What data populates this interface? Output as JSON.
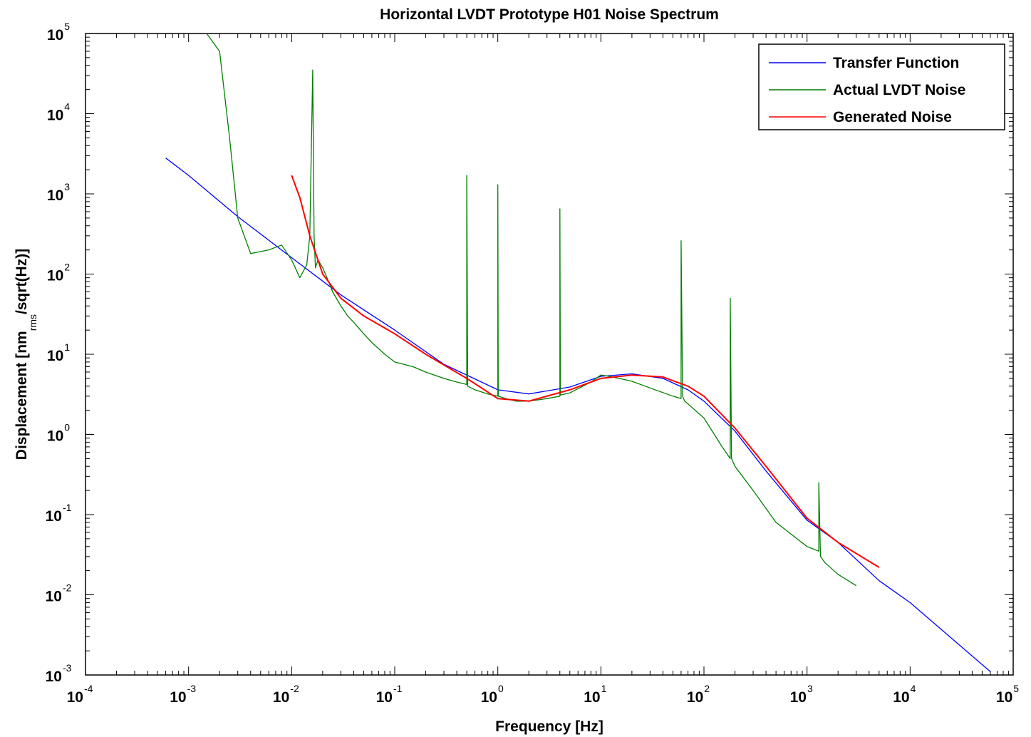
{
  "chart_data": {
    "type": "line",
    "title": "Horizontal LVDT Prototype H01 Noise Spectrum",
    "xlabel": "Frequency [Hz]",
    "ylabel_main": "Displacement [nm",
    "ylabel_sub": "rms",
    "ylabel_tail": "/sqrt(Hz)]",
    "xscale": "log",
    "yscale": "log",
    "xlim": [
      0.0001,
      100000
    ],
    "ylim": [
      0.001,
      100000
    ],
    "grid": false,
    "legend_position": "top-right",
    "x_ticks": [
      {
        "base": "10",
        "exp": "-4"
      },
      {
        "base": "10",
        "exp": "-3"
      },
      {
        "base": "10",
        "exp": "-2"
      },
      {
        "base": "10",
        "exp": "-1"
      },
      {
        "base": "10",
        "exp": "0"
      },
      {
        "base": "10",
        "exp": "1"
      },
      {
        "base": "10",
        "exp": "2"
      },
      {
        "base": "10",
        "exp": "3"
      },
      {
        "base": "10",
        "exp": "4"
      },
      {
        "base": "10",
        "exp": "5"
      }
    ],
    "y_ticks": [
      {
        "base": "10",
        "exp": "-3"
      },
      {
        "base": "10",
        "exp": "-2"
      },
      {
        "base": "10",
        "exp": "-1"
      },
      {
        "base": "10",
        "exp": "0"
      },
      {
        "base": "10",
        "exp": "1"
      },
      {
        "base": "10",
        "exp": "2"
      },
      {
        "base": "10",
        "exp": "3"
      },
      {
        "base": "10",
        "exp": "4"
      },
      {
        "base": "10",
        "exp": "5"
      }
    ],
    "series": [
      {
        "name": "Transfer Function",
        "color": "#0000ff",
        "x": [
          0.0006,
          0.001,
          0.003,
          0.01,
          0.03,
          0.1,
          0.3,
          1,
          2,
          5,
          10,
          20,
          40,
          70,
          100,
          200,
          400,
          1000,
          2000,
          5000,
          10000,
          60000
        ],
        "y": [
          2800,
          1700,
          520,
          160,
          55,
          20,
          7.5,
          3.6,
          3.2,
          3.9,
          5.3,
          5.7,
          5.0,
          3.6,
          2.6,
          1.1,
          0.35,
          0.085,
          0.045,
          0.015,
          0.008,
          0.0011
        ]
      },
      {
        "name": "Actual LVDT Noise",
        "color": "#007f00",
        "x": [
          0.0015,
          0.002,
          0.0025,
          0.003,
          0.004,
          0.006,
          0.008,
          0.01,
          0.012,
          0.014,
          0.015,
          0.016,
          0.0165,
          0.017,
          0.018,
          0.02,
          0.022,
          0.025,
          0.03,
          0.035,
          0.04,
          0.05,
          0.06,
          0.08,
          0.1,
          0.15,
          0.2,
          0.3,
          0.4,
          0.5,
          0.5,
          0.51,
          0.6,
          0.8,
          1.0,
          1.0,
          1.01,
          1.2,
          1.5,
          2,
          3,
          4,
          4,
          4.05,
          5,
          8,
          10,
          12,
          15,
          20,
          30,
          50,
          60,
          60,
          62,
          65,
          70,
          100,
          150,
          180,
          180,
          185,
          200,
          300,
          500,
          1000,
          1300,
          1300,
          1350,
          1500,
          2000,
          3000
        ],
        "y": [
          100000,
          60000,
          5000,
          500,
          180,
          200,
          230,
          150,
          90,
          130,
          300,
          35000,
          300,
          120,
          150,
          120,
          90,
          60,
          40,
          30,
          25,
          18,
          14,
          10,
          8,
          7,
          6,
          5,
          4.5,
          4.2,
          1700,
          4.0,
          3.6,
          3.2,
          3.0,
          1300,
          3.0,
          2.8,
          2.6,
          2.6,
          2.8,
          3.0,
          650,
          3.1,
          3.3,
          4.5,
          5.5,
          5.3,
          5.0,
          4.6,
          3.8,
          3.0,
          2.8,
          260,
          3.0,
          2.6,
          2.4,
          1.6,
          0.7,
          0.5,
          50,
          0.5,
          0.4,
          0.2,
          0.08,
          0.04,
          0.035,
          0.25,
          0.03,
          0.025,
          0.018,
          0.013
        ]
      },
      {
        "name": "Generated Noise",
        "color": "#ff0000",
        "x": [
          0.01,
          0.012,
          0.015,
          0.02,
          0.03,
          0.05,
          0.1,
          0.2,
          0.5,
          1,
          2,
          5,
          10,
          20,
          40,
          70,
          100,
          200,
          400,
          1000,
          2000,
          5000
        ],
        "y": [
          1700,
          900,
          300,
          100,
          50,
          30,
          18,
          10,
          5,
          2.8,
          2.6,
          3.6,
          5.0,
          5.5,
          5.2,
          4.0,
          3.0,
          1.2,
          0.4,
          0.09,
          0.045,
          0.022
        ]
      }
    ]
  }
}
